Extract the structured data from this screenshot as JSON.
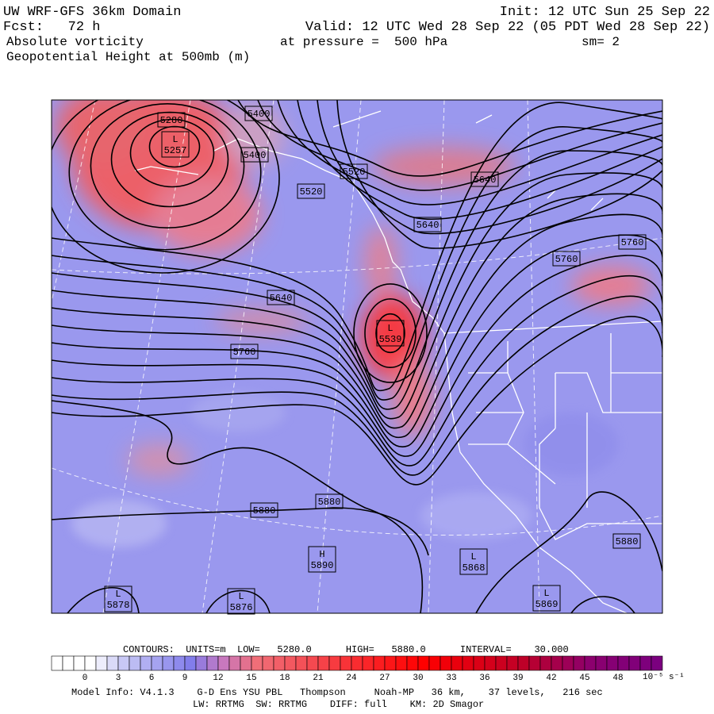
{
  "header": {
    "title": "UW WRF-GFS 36km Domain",
    "init": "Init: 12 UTC Sun 25 Sep 22",
    "fcst": "Fcst:   72 h",
    "valid": "Valid: 12 UTC Wed 28 Sep 22 (05 PDT Wed 28 Sep 22)",
    "field1": "Absolute vorticity",
    "pressure": "at pressure =  500 hPa",
    "smooth": "sm= 2",
    "field2": "Geopotential Height at 500mb (m)"
  },
  "contour_labels": [
    "5280",
    "5400",
    "5400",
    "5520",
    "5520",
    "5640",
    "5640",
    "5760",
    "5760",
    "5640",
    "5760",
    "5880",
    "5880",
    "5880"
  ],
  "centers": [
    {
      "kind": "L",
      "value": "5257"
    },
    {
      "kind": "L",
      "value": "5539"
    },
    {
      "kind": "H",
      "value": "5890"
    },
    {
      "kind": "L",
      "value": "5868"
    },
    {
      "kind": "L",
      "value": "5878"
    },
    {
      "kind": "L",
      "value": "5876"
    },
    {
      "kind": "L",
      "value": "5869"
    }
  ],
  "colorbar": {
    "labels": [
      "0",
      "3",
      "6",
      "9",
      "12",
      "15",
      "18",
      "21",
      "24",
      "27",
      "30",
      "33",
      "36",
      "39",
      "42",
      "45",
      "48"
    ],
    "unit": "10⁻⁵ s⁻¹"
  },
  "footer": {
    "contours": "CONTOURS:  UNITS=m  LOW=   5280.0      HIGH=   5880.0      INTERVAL=    30.000",
    "model": "Model Info: V4.1.3    G-D Ens YSU PBL   Thompson     Noah-MP   36 km,    37 levels,   216 sec",
    "physics": "LW: RRTMG  SW: RRTMG    DIFF: full    KM: 2D Smagor"
  }
}
